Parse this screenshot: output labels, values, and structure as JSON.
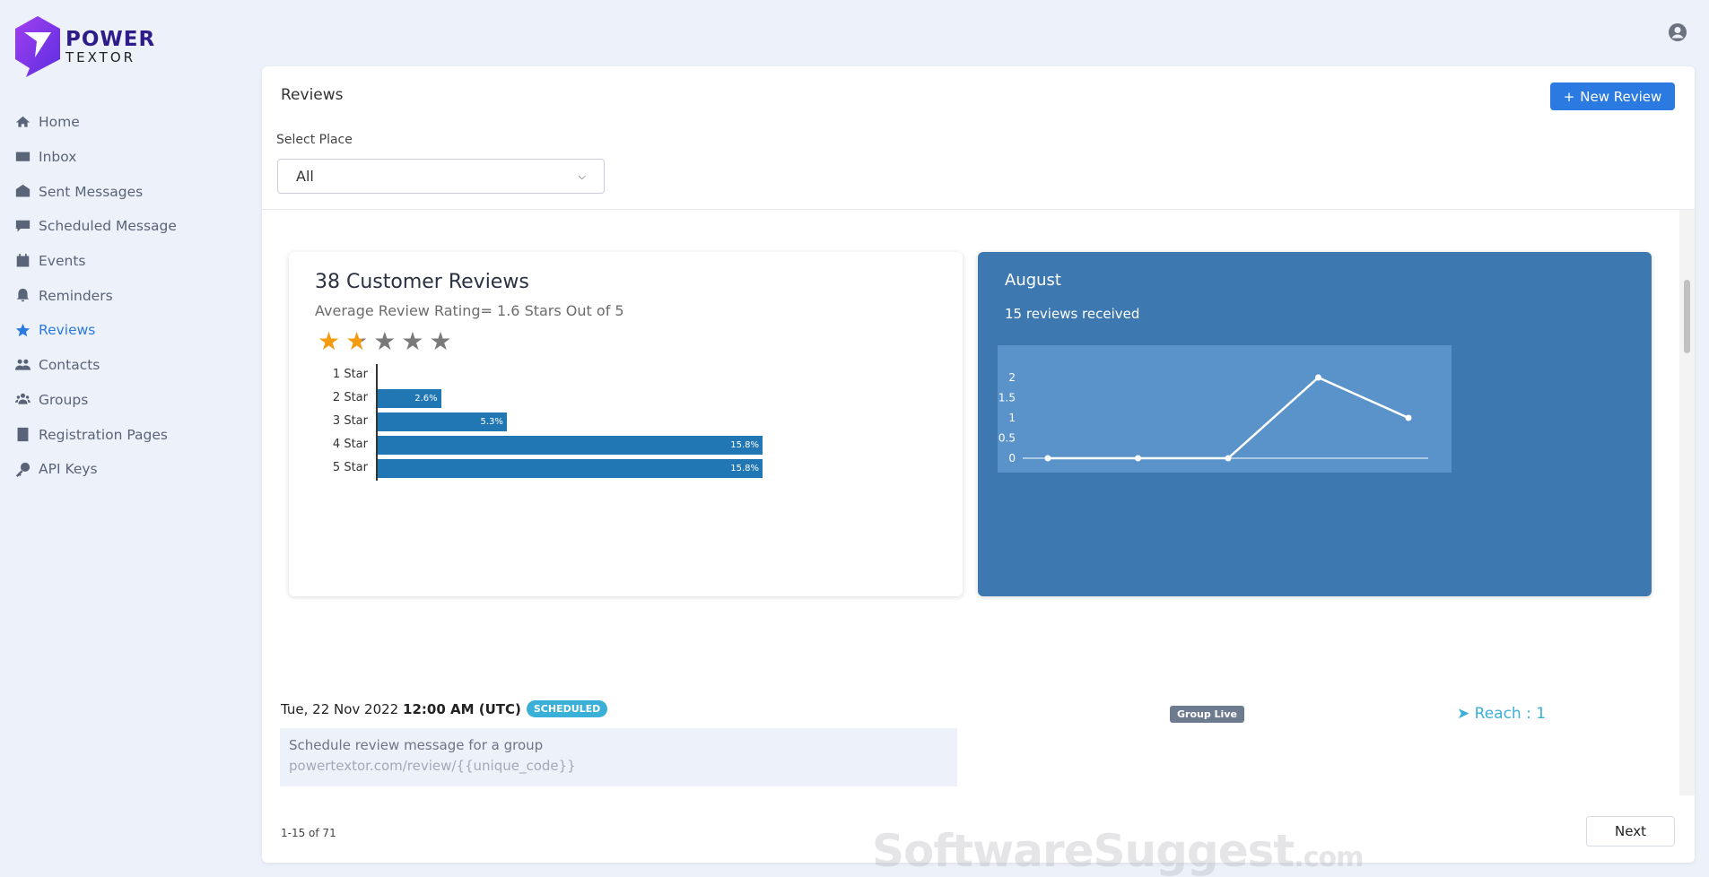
{
  "brand": {
    "line1": "POWER",
    "line2": "TEXTOR"
  },
  "sidebar": {
    "items": [
      {
        "label": "Home",
        "icon": "home-icon"
      },
      {
        "label": "Inbox",
        "icon": "envelope-icon"
      },
      {
        "label": "Sent Messages",
        "icon": "envelope-open-icon"
      },
      {
        "label": "Scheduled Message",
        "icon": "comment-icon"
      },
      {
        "label": "Events",
        "icon": "calendar-icon"
      },
      {
        "label": "Reminders",
        "icon": "bell-icon"
      },
      {
        "label": "Reviews",
        "icon": "star-icon",
        "active": true
      },
      {
        "label": "Contacts",
        "icon": "users-icon"
      },
      {
        "label": "Groups",
        "icon": "group-icon"
      },
      {
        "label": "Registration Pages",
        "icon": "book-icon"
      },
      {
        "label": "API Keys",
        "icon": "key-icon"
      }
    ]
  },
  "header": {
    "title": "Reviews",
    "new_button": "New Review",
    "select_label": "Select Place",
    "select_value": "All"
  },
  "summary": {
    "title": "38 Customer Reviews",
    "subtitle": "Average Review Rating= 1.6 Stars Out of 5",
    "rating": 1.6,
    "accent": "#f39c12"
  },
  "monthly": {
    "title": "August",
    "subtitle": "15 reviews received",
    "bg": "#3d79b0"
  },
  "chart_data": [
    {
      "type": "bar",
      "orientation": "horizontal",
      "categories": [
        "1 Star",
        "2 Star",
        "3 Star",
        "4 Star",
        "5 Star"
      ],
      "values": [
        0,
        2.6,
        5.3,
        15.8,
        15.8
      ],
      "data_labels": [
        "",
        "2.6%",
        "5.3%",
        "15.8%",
        "15.8%"
      ],
      "unit": "%",
      "color": "#2077b4"
    },
    {
      "type": "line",
      "values": [
        0,
        0,
        0,
        2,
        1
      ],
      "yticks": [
        "0",
        "0.5",
        "1",
        "1.5",
        "2"
      ],
      "ylim": [
        0,
        2
      ],
      "color": "#ffffff"
    }
  ],
  "message": {
    "date": "Tue, 22 Nov 2022",
    "time": "12:00 AM (UTC)",
    "status": "SCHEDULED",
    "text": "Schedule review message for a group",
    "link": "powertextor.com/review/{{unique_code}}",
    "group_badge": "Group Live",
    "reach": "Reach : 1"
  },
  "footer": {
    "pagination": "1-15 of 71",
    "next": "Next"
  },
  "watermark": "SoftwareSuggest.com"
}
